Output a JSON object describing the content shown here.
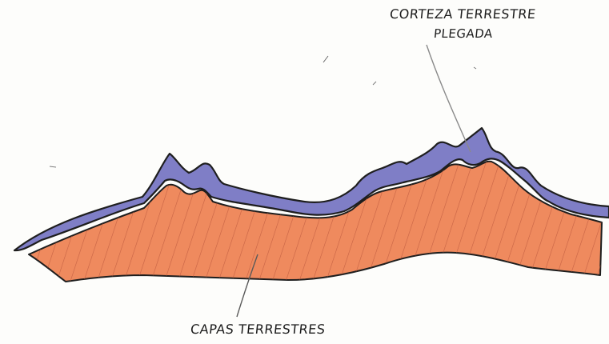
{
  "labels": {
    "crust_line1": "CORTEZA TERRESTRE",
    "crust_line2": "PLEGADA",
    "layers": "CAPAS TERRESTRES"
  },
  "colors": {
    "background": "#fdfdfb",
    "crust": "#7f7ec6",
    "layers": "#ef8a5e",
    "hatch": "#b8543a",
    "outline": "#1e1e1e",
    "leader": "#8a8a8a"
  }
}
